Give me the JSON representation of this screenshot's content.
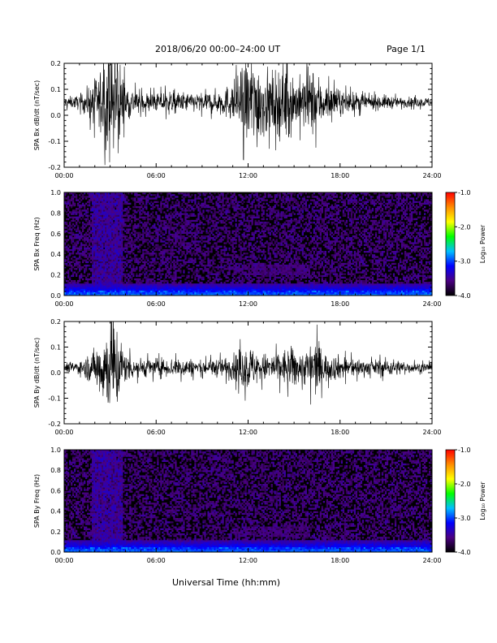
{
  "header": {
    "date_range": "2018/06/20  00:00–24:00 UT",
    "page": "Page 1/1"
  },
  "footer": {
    "xlabel": "Universal Time (hh:mm)"
  },
  "colorbar": {
    "label": "Log₁₀ Power",
    "ticks": [
      "-1.0",
      "-2.0",
      "-3.0",
      "-4.0"
    ],
    "range": [
      -4.0,
      -1.0
    ],
    "colors": [
      "#000000",
      "#4b0082",
      "#0000ff",
      "#00bfff",
      "#00ff00",
      "#ffff00",
      "#ff8c00",
      "#ff0000"
    ]
  },
  "x_ticks": [
    "00:00",
    "06:00",
    "12:00",
    "18:00",
    "24:00"
  ],
  "chart_data": [
    {
      "type": "line",
      "ylabel": "SPA Bx dB/dt (nT/sec)",
      "ylim": [
        -0.2,
        0.2
      ],
      "y_ticks": [
        "0.2",
        "0.1",
        "0.0",
        "-0.1",
        "-0.2"
      ],
      "x_range_hours": [
        0,
        24
      ],
      "baseline": 0.05,
      "series": [
        {
          "x_hours": [
            0,
            1,
            1.5,
            2,
            2.5,
            3,
            3.2,
            3.5,
            4,
            5,
            6,
            7,
            8,
            9,
            10,
            11,
            11.5,
            12,
            12.5,
            13,
            13.5,
            14,
            14.5,
            15,
            15.5,
            16,
            16.5,
            17,
            18,
            19,
            20,
            21,
            22,
            23,
            24
          ],
          "envelope": [
            0.02,
            0.03,
            0.06,
            0.1,
            0.16,
            0.2,
            0.2,
            0.2,
            0.08,
            0.04,
            0.04,
            0.05,
            0.04,
            0.04,
            0.05,
            0.08,
            0.13,
            0.2,
            0.2,
            0.15,
            0.12,
            0.14,
            0.16,
            0.12,
            0.1,
            0.15,
            0.12,
            0.08,
            0.05,
            0.04,
            0.03,
            0.03,
            0.02,
            0.02,
            0.02
          ]
        }
      ]
    },
    {
      "type": "heatmap",
      "ylabel": "SPA Bx Freq (Hz)",
      "ylim": [
        0.0,
        1.0
      ],
      "y_ticks": [
        "1.0",
        "0.8",
        "0.6",
        "0.4",
        "0.2",
        "0.0"
      ],
      "x_range_hours": [
        0,
        24
      ],
      "value_range": [
        -4.0,
        -1.0
      ],
      "features": [
        {
          "x_hours": [
            1.8,
            3.8
          ],
          "freq_hz": [
            0.0,
            1.0
          ],
          "log_power": -3.3
        },
        {
          "x_hours": [
            11.0,
            16.0
          ],
          "freq_hz": [
            0.2,
            0.3
          ],
          "log_power": -3.5
        },
        {
          "x_hours": [
            0,
            24
          ],
          "freq_hz": [
            0.0,
            0.05
          ],
          "log_power": -2.8
        }
      ]
    },
    {
      "type": "line",
      "ylabel": "SPA By dB/dt (nT/sec)",
      "ylim": [
        -0.2,
        0.2
      ],
      "y_ticks": [
        "0.2",
        "0.1",
        "0.0",
        "-0.1",
        "-0.2"
      ],
      "x_range_hours": [
        0,
        24
      ],
      "baseline": 0.02,
      "series": [
        {
          "x_hours": [
            0,
            1,
            1.5,
            2,
            2.5,
            3,
            3.2,
            3.5,
            4,
            5,
            6,
            7,
            8,
            9,
            10,
            11,
            11.5,
            12,
            12.5,
            13,
            13.5,
            14,
            14.5,
            15,
            15.5,
            16,
            16.5,
            17,
            18,
            19,
            20,
            21,
            22,
            23,
            24
          ],
          "envelope": [
            0.02,
            0.03,
            0.05,
            0.08,
            0.15,
            0.2,
            0.2,
            0.18,
            0.06,
            0.04,
            0.04,
            0.04,
            0.04,
            0.03,
            0.04,
            0.05,
            0.08,
            0.1,
            0.07,
            0.06,
            0.06,
            0.07,
            0.08,
            0.09,
            0.06,
            0.1,
            0.12,
            0.06,
            0.05,
            0.04,
            0.03,
            0.04,
            0.03,
            0.02,
            0.02
          ]
        }
      ]
    },
    {
      "type": "heatmap",
      "ylabel": "SPA By Freq (Hz)",
      "ylim": [
        0.0,
        1.0
      ],
      "y_ticks": [
        "1.0",
        "0.8",
        "0.6",
        "0.4",
        "0.2",
        "0.0"
      ],
      "x_range_hours": [
        0,
        24
      ],
      "value_range": [
        -4.0,
        -1.0
      ],
      "features": [
        {
          "x_hours": [
            1.8,
            3.8
          ],
          "freq_hz": [
            0.0,
            1.0
          ],
          "log_power": -3.3
        },
        {
          "x_hours": [
            11.0,
            16.0
          ],
          "freq_hz": [
            0.15,
            0.25
          ],
          "log_power": -3.5
        },
        {
          "x_hours": [
            0,
            24
          ],
          "freq_hz": [
            0.0,
            0.05
          ],
          "log_power": -2.8
        }
      ]
    }
  ]
}
